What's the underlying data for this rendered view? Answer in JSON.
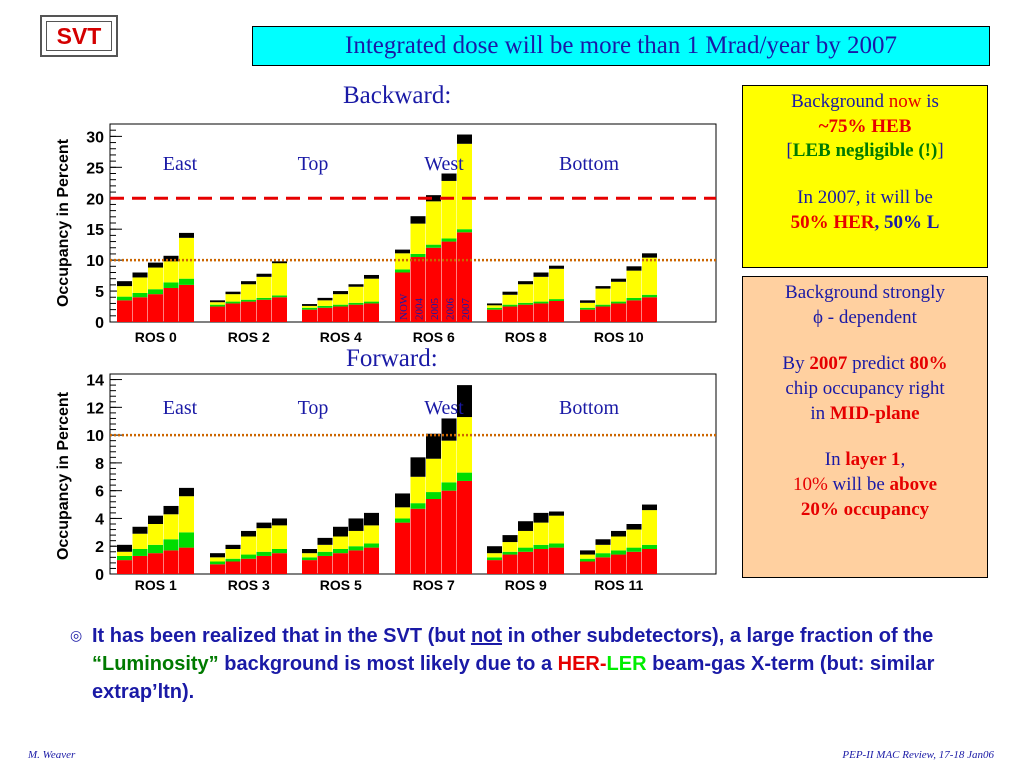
{
  "badge": {
    "label": "SVT"
  },
  "title": "Integrated dose will be more than 1 Mrad/year by 2007",
  "chart_data": [
    {
      "type": "bar",
      "stacked": true,
      "section_label": "Backward:",
      "ylabel": "Occupancy in Percent",
      "ylim": [
        0,
        32
      ],
      "yticks": [
        0,
        5,
        10,
        15,
        20,
        25,
        30
      ],
      "region_labels": [
        "East",
        "Top",
        "West",
        "Bottom"
      ],
      "group_labels": [
        "ROS 0",
        "ROS 2",
        "ROS 4",
        "ROS 6",
        "ROS 8",
        "ROS 10"
      ],
      "bar_labels": {
        "group": 3,
        "labels": [
          "NOW",
          "2004",
          "2005",
          "2006",
          "2007"
        ]
      },
      "reference_lines": [
        {
          "y": 20,
          "style": "dashed",
          "color": "#e60000"
        },
        {
          "y": 10,
          "style": "dotted",
          "color": "#cc6600"
        }
      ],
      "series_colors": {
        "red": "#ff0000",
        "green": "#00dd00",
        "yellow": "#ffff00",
        "black": "#000000"
      },
      "groups": [
        [
          [
            3.5,
            0.6,
            1.7,
            0.8
          ],
          [
            4.0,
            0.7,
            2.5,
            0.8
          ],
          [
            4.5,
            0.8,
            3.5,
            0.8
          ],
          [
            5.5,
            0.9,
            3.4,
            0.9
          ],
          [
            6.0,
            1.0,
            6.6,
            0.8
          ]
        ],
        [
          [
            2.5,
            0.3,
            0.4,
            0.3
          ],
          [
            3.0,
            0.3,
            1.2,
            0.4
          ],
          [
            3.3,
            0.3,
            2.5,
            0.5
          ],
          [
            3.6,
            0.3,
            3.4,
            0.5
          ],
          [
            4.0,
            0.3,
            5.2,
            0.3
          ]
        ],
        [
          [
            2.0,
            0.3,
            0.3,
            0.3
          ],
          [
            2.3,
            0.3,
            0.9,
            0.4
          ],
          [
            2.5,
            0.3,
            1.7,
            0.5
          ],
          [
            2.8,
            0.3,
            2.6,
            0.4
          ],
          [
            3.0,
            0.3,
            3.7,
            0.6
          ]
        ],
        [
          [
            8.0,
            0.5,
            2.6,
            0.6
          ],
          [
            10.5,
            0.5,
            4.9,
            1.2
          ],
          [
            12.0,
            0.5,
            7.0,
            1.0
          ],
          [
            13.0,
            0.5,
            9.3,
            1.2
          ],
          [
            14.5,
            0.5,
            13.8,
            1.5
          ]
        ],
        [
          [
            2.0,
            0.3,
            0.4,
            0.3
          ],
          [
            2.5,
            0.3,
            1.6,
            0.5
          ],
          [
            2.8,
            0.3,
            3.0,
            0.5
          ],
          [
            3.0,
            0.3,
            4.0,
            0.7
          ],
          [
            3.4,
            0.3,
            4.9,
            0.5
          ]
        ],
        [
          [
            2.0,
            0.3,
            0.8,
            0.4
          ],
          [
            2.5,
            0.3,
            2.6,
            0.4
          ],
          [
            3.0,
            0.3,
            3.2,
            0.5
          ],
          [
            3.5,
            0.4,
            4.4,
            0.7
          ],
          [
            4.0,
            0.4,
            6.0,
            0.7
          ]
        ]
      ]
    },
    {
      "type": "bar",
      "stacked": true,
      "section_label": "Forward:",
      "ylabel": "Occupancy in Percent",
      "ylim": [
        0,
        14.4
      ],
      "yticks": [
        0,
        2,
        4,
        6,
        8,
        10,
        12,
        14
      ],
      "region_labels": [
        "East",
        "Top",
        "West",
        "Bottom"
      ],
      "group_labels": [
        "ROS 1",
        "ROS 3",
        "ROS 5",
        "ROS 7",
        "ROS 9",
        "ROS 11"
      ],
      "reference_lines": [
        {
          "y": 10,
          "style": "dotted",
          "color": "#cc6600"
        }
      ],
      "series_colors": {
        "red": "#ff0000",
        "green": "#00dd00",
        "yellow": "#ffff00",
        "black": "#000000"
      },
      "groups": [
        [
          [
            1.0,
            0.3,
            0.3,
            0.5
          ],
          [
            1.3,
            0.5,
            1.1,
            0.5
          ],
          [
            1.5,
            0.6,
            1.5,
            0.6
          ],
          [
            1.7,
            0.8,
            1.8,
            0.6
          ],
          [
            1.9,
            1.1,
            2.6,
            0.6
          ]
        ],
        [
          [
            0.7,
            0.2,
            0.3,
            0.3
          ],
          [
            0.9,
            0.2,
            0.7,
            0.3
          ],
          [
            1.1,
            0.3,
            1.3,
            0.4
          ],
          [
            1.3,
            0.3,
            1.7,
            0.4
          ],
          [
            1.5,
            0.3,
            1.7,
            0.5
          ]
        ],
        [
          [
            1.0,
            0.2,
            0.3,
            0.3
          ],
          [
            1.3,
            0.3,
            0.5,
            0.5
          ],
          [
            1.5,
            0.3,
            0.9,
            0.7
          ],
          [
            1.7,
            0.3,
            1.1,
            0.9
          ],
          [
            1.9,
            0.3,
            1.3,
            0.9
          ]
        ],
        [
          [
            3.7,
            0.3,
            0.8,
            1.0
          ],
          [
            4.7,
            0.4,
            1.9,
            1.4
          ],
          [
            5.4,
            0.5,
            2.4,
            1.8
          ],
          [
            6.0,
            0.6,
            3.0,
            1.6
          ],
          [
            6.7,
            0.6,
            4.0,
            2.3
          ]
        ],
        [
          [
            1.0,
            0.2,
            0.3,
            0.5
          ],
          [
            1.4,
            0.2,
            0.7,
            0.5
          ],
          [
            1.6,
            0.3,
            1.2,
            0.7
          ],
          [
            1.8,
            0.3,
            1.6,
            0.7
          ],
          [
            1.9,
            0.3,
            2.0,
            0.3
          ]
        ],
        [
          [
            0.9,
            0.2,
            0.3,
            0.3
          ],
          [
            1.2,
            0.3,
            0.6,
            0.4
          ],
          [
            1.4,
            0.3,
            1.0,
            0.4
          ],
          [
            1.6,
            0.3,
            1.3,
            0.4
          ],
          [
            1.8,
            0.3,
            2.5,
            0.4
          ]
        ]
      ]
    }
  ],
  "info_yellow": {
    "line1_a": "Background ",
    "line1_now": "now",
    "line1_b": " is",
    "line2": "~75% HEB",
    "line3_open": "[",
    "line3_mid": "LEB negligible (!)",
    "line3_close": "]",
    "line4": "In 2007, it will be",
    "line5_her": "50% HER",
    "line5_comma": ", ",
    "line5_l": "50% L"
  },
  "info_orange": {
    "p1_line1": "Background strongly",
    "p1_phi": "ϕ",
    "p1_line2": " - dependent",
    "p2_by": "By ",
    "p2_year": "2007",
    "p2_predict": " predict ",
    "p2_pct": "80%",
    "p2_line2": "chip occupancy right",
    "p2_in": "in ",
    "p2_mid": "MID-plane",
    "p3_in": "In ",
    "p3_layer": "layer 1",
    "p3_comma": ",",
    "p3_pct": "10%",
    "p3_willbe": " will be ",
    "p3_above": "above",
    "p3_occ": "20% occupancy"
  },
  "bullet": {
    "icon": "◎",
    "t1": "It has been realized that in the SVT (but ",
    "t2": "not",
    "t3": " in other subdetectors), a large fraction of the ",
    "t4": "“Luminosity”",
    "t5": " background is most likely due to a ",
    "t6": "HER",
    "t7": "-",
    "t8": "LER",
    "t9": " beam-gas X-term (but: similar extrap’ltn)."
  },
  "footer": {
    "left": "M. Weaver",
    "right": "PEP-II  MAC Review, 17-18 Jan06"
  }
}
